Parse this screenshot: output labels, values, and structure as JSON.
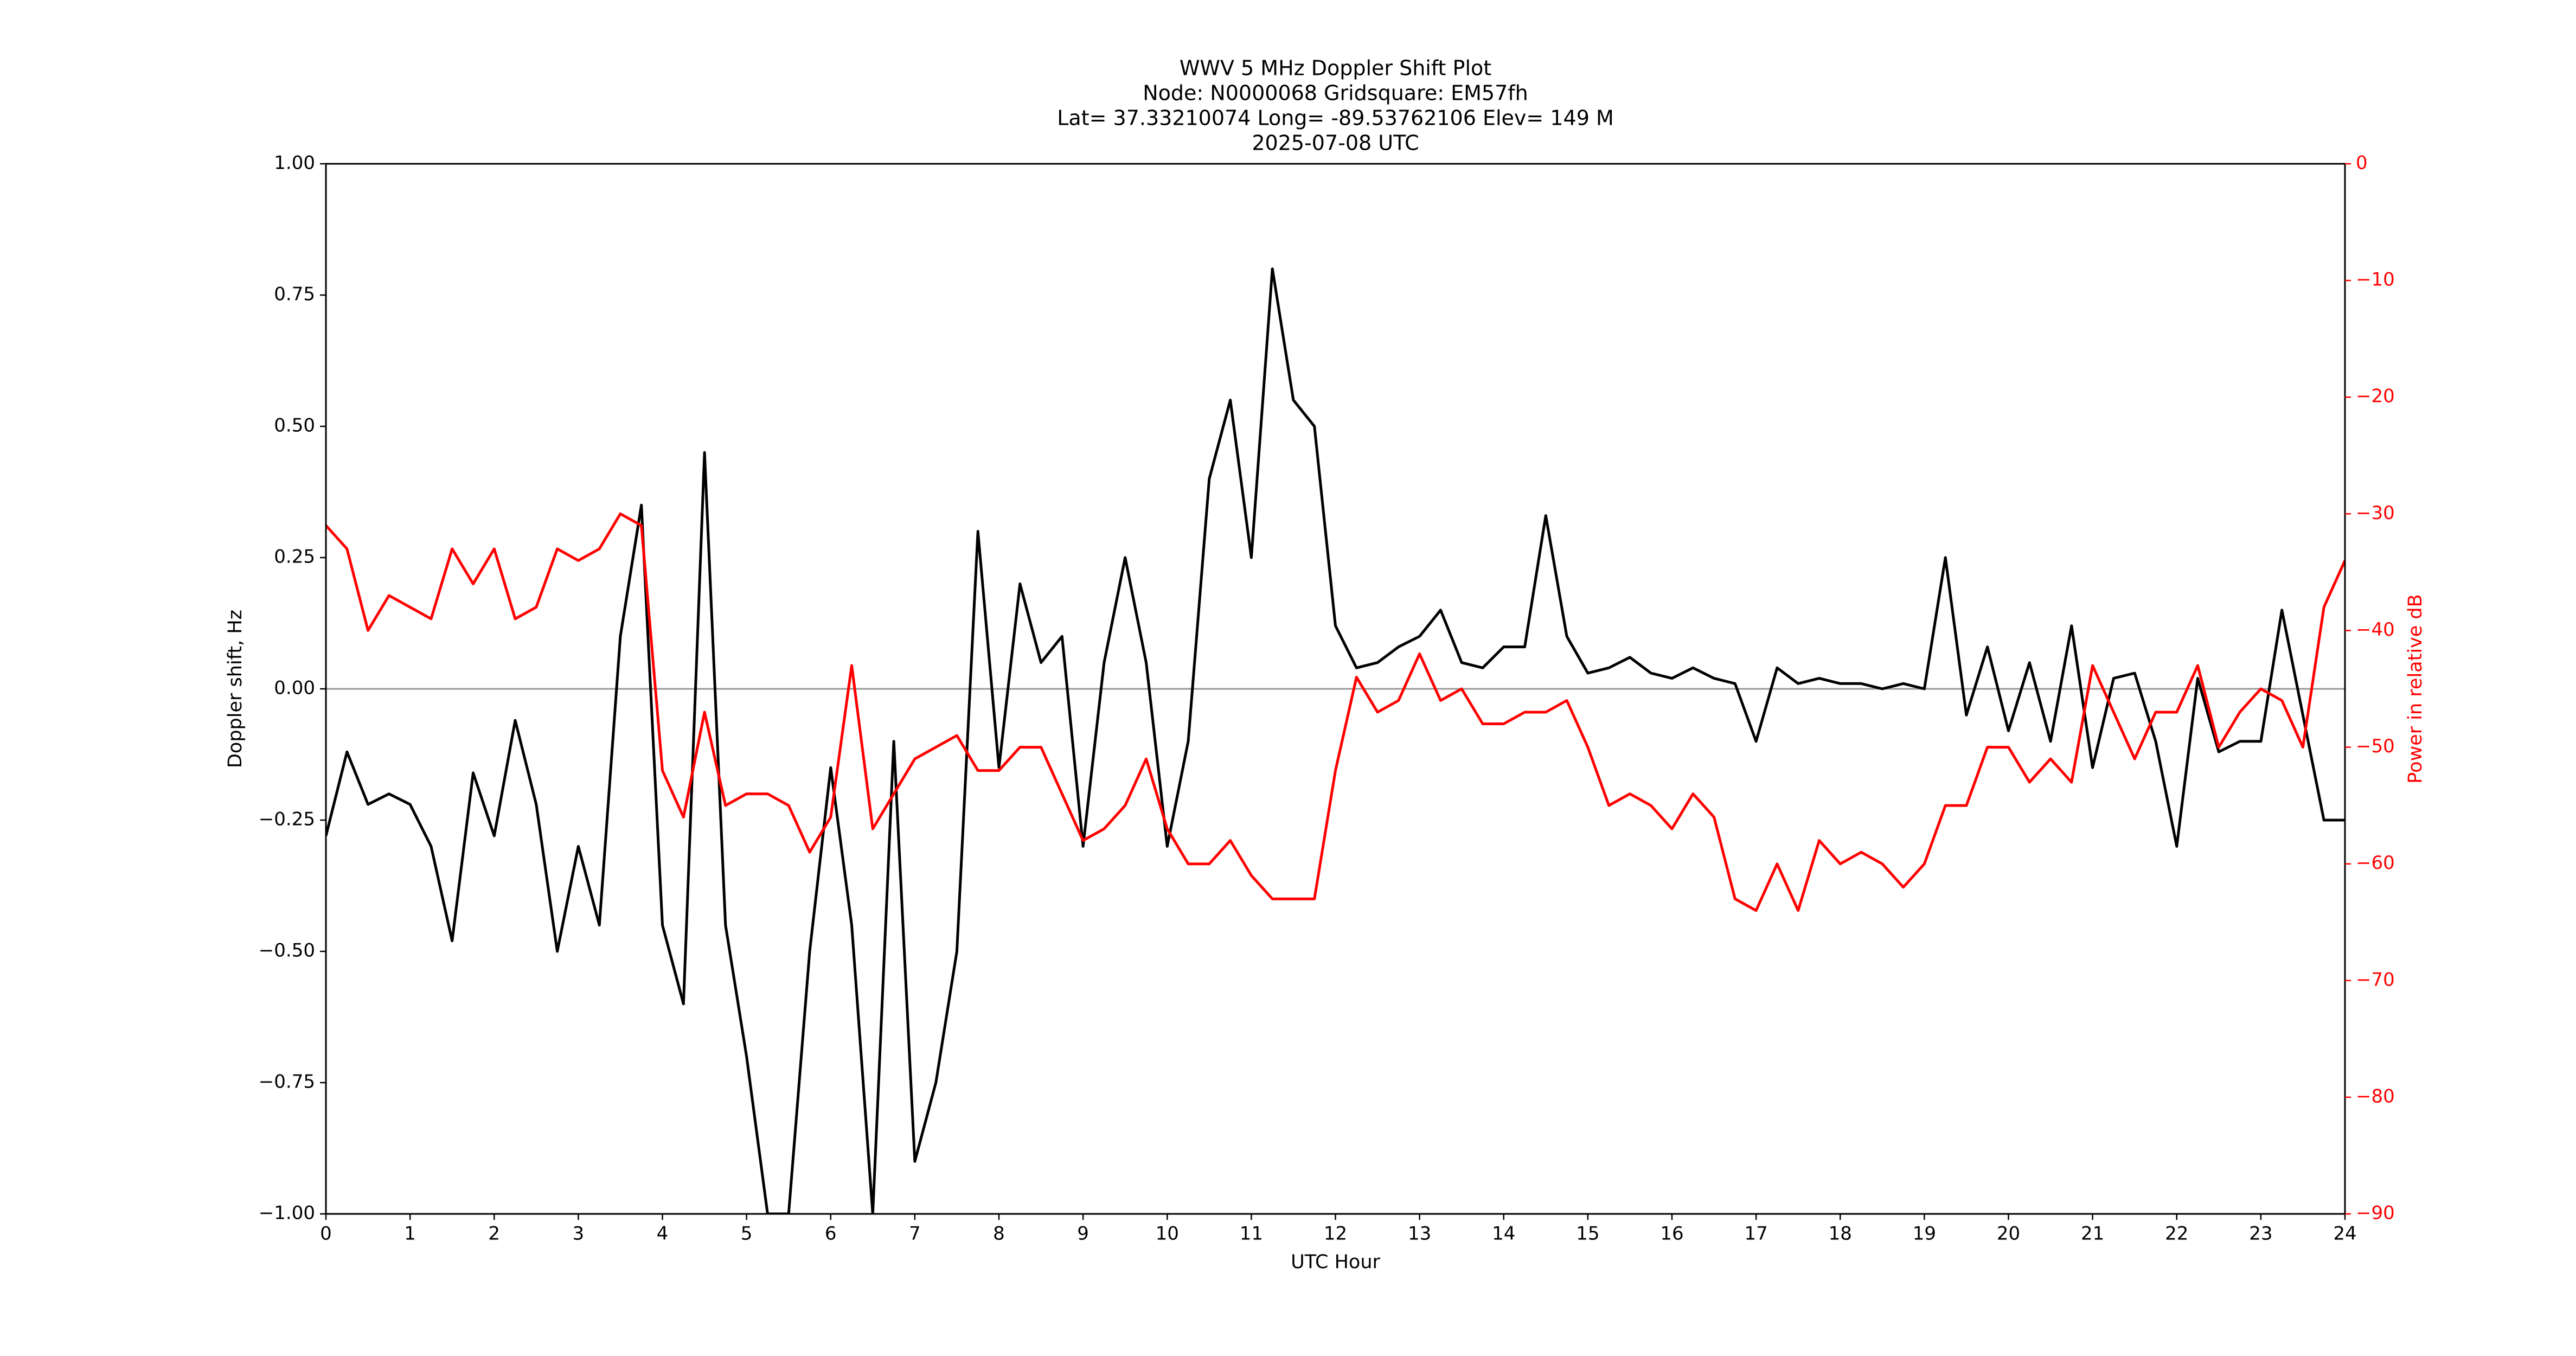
{
  "chart_data": {
    "type": "line",
    "title_lines": [
      "WWV 5 MHz Doppler Shift Plot",
      "Node:  N0000068     Gridsquare:  EM57fh",
      "Lat= 37.33210074    Long= -89.53762106    Elev= 149 M",
      "2025-07-08  UTC"
    ],
    "x_label": "UTC Hour",
    "y_label": "Doppler shift, Hz",
    "y2_label": "Power in relative dB",
    "y2_color": "#ff0000",
    "hline": 0,
    "hline_color": "#999999",
    "xlim": [
      0,
      24
    ],
    "xticks": [
      0,
      1,
      2,
      3,
      4,
      5,
      6,
      7,
      8,
      9,
      10,
      11,
      12,
      13,
      14,
      15,
      16,
      17,
      18,
      19,
      20,
      21,
      22,
      23,
      24
    ],
    "ylim": [
      -1,
      1
    ],
    "yticks": [
      {
        "value": -1,
        "label": "−1.00"
      },
      {
        "value": -0.75,
        "label": "−0.75"
      },
      {
        "value": -0.5,
        "label": "−0.50"
      },
      {
        "value": -0.25,
        "label": "−0.25"
      },
      {
        "value": 0,
        "label": "0.00"
      },
      {
        "value": 0.25,
        "label": "0.25"
      },
      {
        "value": 0.5,
        "label": "0.50"
      },
      {
        "value": 0.75,
        "label": "0.75"
      },
      {
        "value": 1,
        "label": "1.00"
      }
    ],
    "y2lim": [
      -90,
      0
    ],
    "y2ticks": [
      {
        "value": -90,
        "label": "−90"
      },
      {
        "value": -80,
        "label": "−80"
      },
      {
        "value": -70,
        "label": "−70"
      },
      {
        "value": -60,
        "label": "−60"
      },
      {
        "value": -50,
        "label": "−50"
      },
      {
        "value": -40,
        "label": "−40"
      },
      {
        "value": -30,
        "label": "−30"
      },
      {
        "value": -20,
        "label": "−20"
      },
      {
        "value": -10,
        "label": "−10"
      },
      0
    ],
    "x": [
      0,
      0.25,
      0.5,
      0.75,
      1,
      1.25,
      1.5,
      1.75,
      2,
      2.25,
      2.5,
      2.75,
      3,
      3.25,
      3.5,
      3.75,
      4,
      4.25,
      4.5,
      4.75,
      5,
      5.25,
      5.5,
      5.75,
      6,
      6.25,
      6.5,
      6.75,
      7,
      7.25,
      7.5,
      7.75,
      8,
      8.25,
      8.5,
      8.75,
      9,
      9.25,
      9.5,
      9.75,
      10,
      10.25,
      10.5,
      10.75,
      11,
      11.25,
      11.5,
      11.75,
      12,
      12.25,
      12.5,
      12.75,
      13,
      13.25,
      13.5,
      13.75,
      14,
      14.25,
      14.5,
      14.75,
      15,
      15.25,
      15.5,
      15.75,
      16,
      16.25,
      16.5,
      16.75,
      17,
      17.25,
      17.5,
      17.75,
      18,
      18.25,
      18.5,
      18.75,
      19,
      19.25,
      19.5,
      19.75,
      20,
      20.25,
      20.5,
      20.75,
      21,
      21.25,
      21.5,
      21.75,
      22,
      22.25,
      22.5,
      22.75,
      23,
      23.25,
      23.5,
      23.75,
      24
    ],
    "series": [
      {
        "color": "#000000",
        "values": [
          -0.28,
          -0.12,
          -0.22,
          -0.2,
          -0.22,
          -0.3,
          -0.48,
          -0.16,
          -0.28,
          -0.06,
          -0.22,
          -0.5,
          -0.3,
          -0.45,
          0.1,
          0.35,
          -0.45,
          -0.6,
          0.45,
          -0.45,
          -0.7,
          -1.0,
          -1.0,
          -0.5,
          -0.15,
          -0.45,
          -1.0,
          -0.1,
          -0.9,
          -0.75,
          -0.5,
          0.3,
          -0.15,
          0.2,
          0.05,
          0.1,
          -0.3,
          0.05,
          0.25,
          0.05,
          -0.3,
          -0.1,
          0.4,
          0.55,
          0.25,
          0.8,
          0.55,
          0.5,
          0.12,
          0.04,
          0.05,
          0.08,
          0.1,
          0.15,
          0.05,
          0.04,
          0.08,
          0.08,
          0.33,
          0.1,
          0.03,
          0.04,
          0.06,
          0.03,
          0.02,
          0.04,
          0.02,
          0.01,
          -0.1,
          0.04,
          0.01,
          0.02,
          0.01,
          0.01,
          0.0,
          0.01,
          0.0,
          0.25,
          -0.05,
          0.08,
          -0.08,
          0.05,
          -0.1,
          0.12,
          -0.15,
          0.02,
          0.03,
          -0.1,
          -0.3,
          0.02,
          -0.12,
          -0.1,
          -0.1,
          0.15,
          -0.05,
          -0.25,
          -0.25
        ]
      },
      {
        "color": "#ff0000",
        "axis": "y2",
        "values": [
          -31,
          -33,
          -40,
          -37,
          -38,
          -39,
          -33,
          -36,
          -33,
          -39,
          -38,
          -33,
          -34,
          -33,
          -30,
          -31,
          -52,
          -56,
          -47,
          -55,
          -54,
          -54,
          -55,
          -59,
          -56,
          -43,
          -57,
          -54,
          -51,
          -50,
          -49,
          -52,
          -52,
          -50,
          -50,
          -54,
          -58,
          -57,
          -55,
          -51,
          -57,
          -60,
          -60,
          -58,
          -61,
          -63,
          -63,
          -63,
          -52,
          -44,
          -47,
          -46,
          -42,
          -46,
          -45,
          -48,
          -48,
          -47,
          -47,
          -46,
          -50,
          -55,
          -54,
          -55,
          -57,
          -54,
          -56,
          -63,
          -64,
          -60,
          -64,
          -58,
          -60,
          -59,
          -60,
          -62,
          -60,
          -55,
          -55,
          -50,
          -50,
          -53,
          -51,
          -53,
          -43,
          -47,
          -51,
          -47,
          -47,
          -43,
          -50,
          -47,
          -45,
          -46,
          -50,
          -38,
          -34
        ]
      }
    ]
  }
}
